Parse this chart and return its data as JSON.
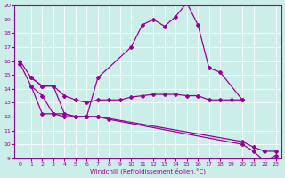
{
  "xlabel": "Windchill (Refroidissement éolien,°C)",
  "background_color": "#cceee8",
  "line_color": "#990099",
  "xlim": [
    -0.5,
    23.5
  ],
  "ylim": [
    9,
    20
  ],
  "xticks": [
    0,
    1,
    2,
    3,
    4,
    5,
    6,
    7,
    8,
    9,
    10,
    11,
    12,
    13,
    14,
    15,
    16,
    17,
    18,
    19,
    20,
    21,
    22,
    23
  ],
  "yticks": [
    9,
    10,
    11,
    12,
    13,
    14,
    15,
    16,
    17,
    18,
    19,
    20
  ],
  "line1_x": [
    0,
    1,
    2,
    3,
    4,
    5,
    6,
    7,
    10,
    11,
    12,
    13,
    14,
    15,
    16,
    17,
    18,
    20
  ],
  "line1_y": [
    16.0,
    14.8,
    14.2,
    14.2,
    12.2,
    12.0,
    12.0,
    14.8,
    17.0,
    18.6,
    19.0,
    18.5,
    19.2,
    20.2,
    18.6,
    15.5,
    15.2,
    13.2
  ],
  "line2_x": [
    1,
    2,
    3,
    4,
    5,
    6,
    7,
    8,
    9,
    10,
    11,
    12,
    13,
    14,
    15,
    16,
    17,
    18,
    19,
    20
  ],
  "line2_y": [
    14.8,
    14.2,
    14.2,
    13.5,
    13.2,
    13.0,
    13.2,
    13.2,
    13.2,
    13.4,
    13.5,
    13.6,
    13.6,
    13.6,
    13.5,
    13.5,
    13.2,
    13.2,
    13.2,
    13.2
  ],
  "line3_x": [
    0,
    1,
    2,
    3,
    4,
    5,
    6,
    7,
    20,
    21,
    22,
    23
  ],
  "line3_y": [
    15.8,
    14.2,
    13.5,
    12.2,
    12.2,
    12.0,
    12.0,
    12.0,
    10.2,
    9.8,
    9.5,
    9.5
  ],
  "line4_x": [
    1,
    2,
    3,
    4,
    5,
    6,
    7,
    8,
    20,
    21,
    22,
    23
  ],
  "line4_y": [
    14.2,
    12.2,
    12.2,
    12.0,
    12.0,
    12.0,
    12.0,
    11.8,
    10.0,
    9.5,
    8.8,
    9.2
  ]
}
